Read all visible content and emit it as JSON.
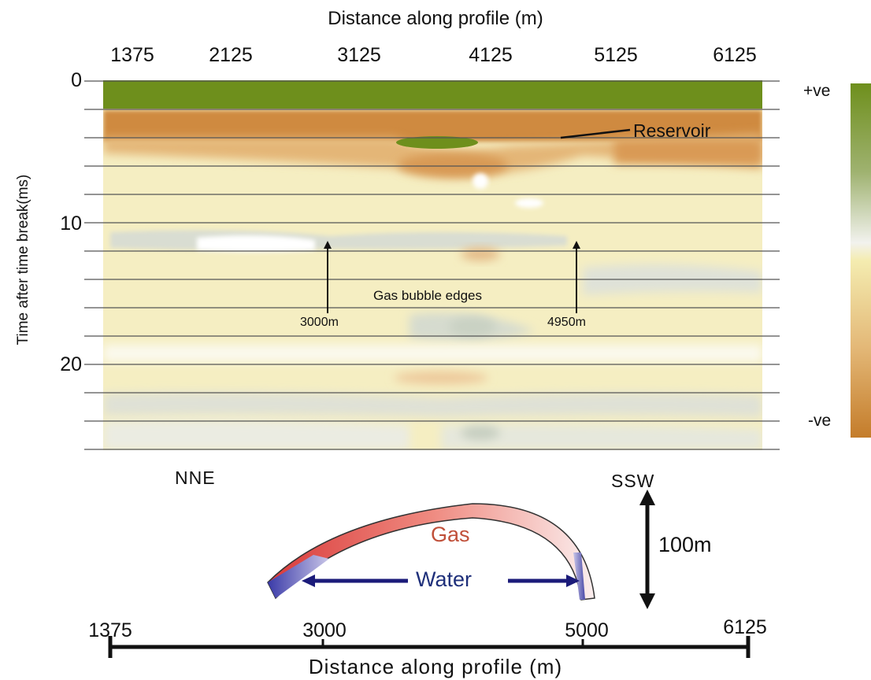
{
  "top_axis": {
    "title": "Distance along profile (m)",
    "ticks": [
      "1375",
      "2125",
      "3125",
      "4125",
      "5125",
      "6125"
    ]
  },
  "y_axis": {
    "title": "Time after time break(ms)",
    "ticks": [
      "0",
      "10",
      "20"
    ]
  },
  "colorbar": {
    "top_label": "+ve",
    "bottom_label": "-ve",
    "colors": [
      "#6e8f1c",
      "#f0f0ec",
      "#f4ecb0",
      "#c47c2a"
    ]
  },
  "annotations": {
    "reservoir": "Reservoir",
    "gas_bubble_edges": "Gas bubble edges",
    "left_edge": "3000m",
    "right_edge": "4950m"
  },
  "directions": {
    "left": "NNE",
    "right": "SSW"
  },
  "cross_section": {
    "gas": "Gas",
    "water": "Water",
    "scale": "100m"
  },
  "bottom_axis": {
    "title": "Distance along profile (m)",
    "ticks": [
      "1375",
      "3000",
      "5000",
      "6125"
    ]
  }
}
